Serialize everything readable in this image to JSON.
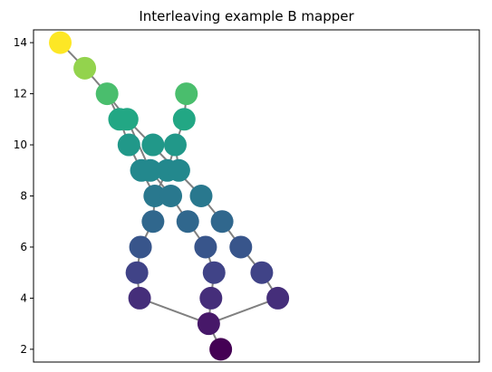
{
  "chart_data": {
    "type": "scatter",
    "title": "Interleaving example B mapper",
    "xlabel": "",
    "ylabel": "",
    "ylim": [
      1.5,
      14.5
    ],
    "xlim": [
      0,
      1
    ],
    "yticks": [
      2,
      4,
      6,
      8,
      10,
      12,
      14
    ],
    "xticks": [],
    "grid": false,
    "legend": "none",
    "colormap": "viridis",
    "nodes": [
      {
        "id": 0,
        "x": 0.06,
        "y": 14
      },
      {
        "id": 1,
        "x": 0.115,
        "y": 13
      },
      {
        "id": 2,
        "x": 0.165,
        "y": 12
      },
      {
        "id": 3,
        "x": 0.193,
        "y": 11
      },
      {
        "id": 4,
        "x": 0.21,
        "y": 11
      },
      {
        "id": 5,
        "x": 0.343,
        "y": 12
      },
      {
        "id": 6,
        "x": 0.338,
        "y": 11
      },
      {
        "id": 7,
        "x": 0.214,
        "y": 10
      },
      {
        "id": 8,
        "x": 0.268,
        "y": 10
      },
      {
        "id": 9,
        "x": 0.318,
        "y": 10
      },
      {
        "id": 10,
        "x": 0.242,
        "y": 9
      },
      {
        "id": 11,
        "x": 0.262,
        "y": 9
      },
      {
        "id": 12,
        "x": 0.3,
        "y": 9
      },
      {
        "id": 13,
        "x": 0.326,
        "y": 9
      },
      {
        "id": 14,
        "x": 0.272,
        "y": 8
      },
      {
        "id": 15,
        "x": 0.308,
        "y": 8
      },
      {
        "id": 16,
        "x": 0.376,
        "y": 8
      },
      {
        "id": 17,
        "x": 0.268,
        "y": 7
      },
      {
        "id": 18,
        "x": 0.346,
        "y": 7
      },
      {
        "id": 19,
        "x": 0.423,
        "y": 7
      },
      {
        "id": 20,
        "x": 0.24,
        "y": 6
      },
      {
        "id": 21,
        "x": 0.386,
        "y": 6
      },
      {
        "id": 22,
        "x": 0.465,
        "y": 6
      },
      {
        "id": 23,
        "x": 0.232,
        "y": 5
      },
      {
        "id": 24,
        "x": 0.405,
        "y": 5
      },
      {
        "id": 25,
        "x": 0.512,
        "y": 5
      },
      {
        "id": 26,
        "x": 0.238,
        "y": 4
      },
      {
        "id": 27,
        "x": 0.398,
        "y": 4
      },
      {
        "id": 28,
        "x": 0.548,
        "y": 4
      },
      {
        "id": 29,
        "x": 0.393,
        "y": 3
      },
      {
        "id": 30,
        "x": 0.42,
        "y": 2
      }
    ],
    "edges": [
      [
        0,
        1
      ],
      [
        1,
        2
      ],
      [
        2,
        3
      ],
      [
        2,
        4
      ],
      [
        3,
        7
      ],
      [
        4,
        16
      ],
      [
        16,
        19
      ],
      [
        19,
        22
      ],
      [
        22,
        25
      ],
      [
        25,
        28
      ],
      [
        28,
        29
      ],
      [
        29,
        30
      ],
      [
        26,
        29
      ],
      [
        23,
        26
      ],
      [
        20,
        23
      ],
      [
        17,
        20
      ],
      [
        14,
        17
      ],
      [
        10,
        14
      ],
      [
        7,
        10
      ],
      [
        4,
        11
      ],
      [
        11,
        15
      ],
      [
        15,
        18
      ],
      [
        18,
        21
      ],
      [
        21,
        24
      ],
      [
        24,
        27
      ],
      [
        27,
        29
      ],
      [
        5,
        6
      ],
      [
        6,
        9
      ],
      [
        9,
        12
      ],
      [
        12,
        14
      ],
      [
        9,
        13
      ],
      [
        13,
        10
      ]
    ]
  }
}
